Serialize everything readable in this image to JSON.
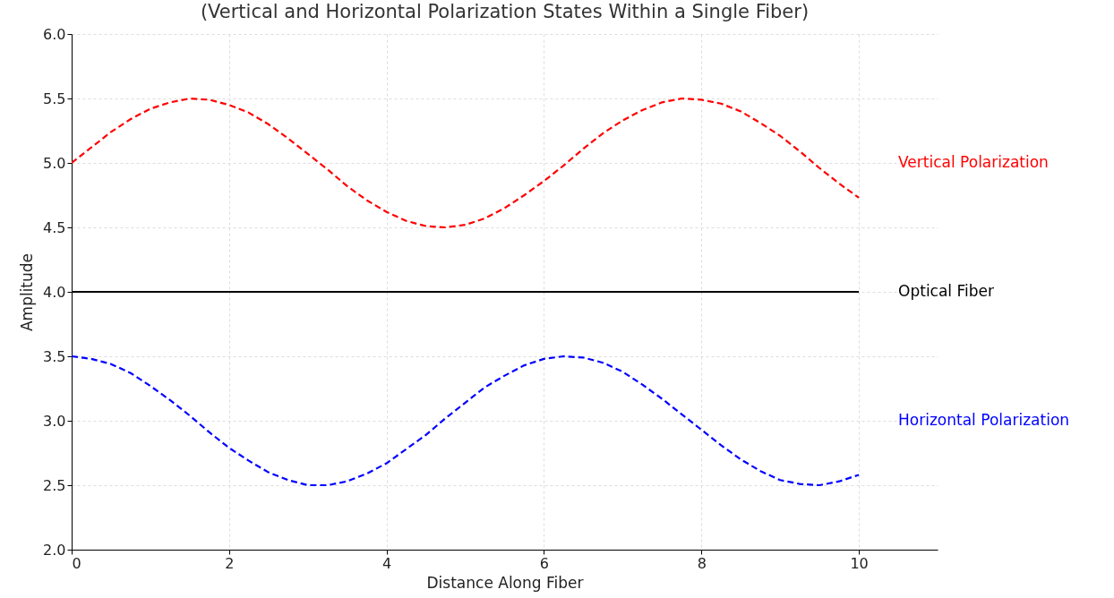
{
  "chart_data": {
    "type": "line",
    "title": "(Vertical and Horizontal Polarization States Within a Single Fiber)",
    "xlabel": "Distance Along Fiber",
    "ylabel": "Amplitude",
    "x": [
      0,
      0.25,
      0.5,
      0.75,
      1,
      1.25,
      1.5,
      1.75,
      2,
      2.25,
      2.5,
      2.75,
      3,
      3.25,
      3.5,
      3.75,
      4,
      4.25,
      4.5,
      4.75,
      5,
      5.25,
      5.5,
      5.75,
      6,
      6.25,
      6.5,
      6.75,
      7,
      7.25,
      7.5,
      7.75,
      8,
      8.25,
      8.5,
      8.75,
      9,
      9.25,
      9.5,
      9.75,
      10
    ],
    "series": [
      {
        "name": "Vertical Polarization",
        "color": "#ff0000",
        "line_style": "dashed",
        "values": [
          5.0,
          5.12,
          5.24,
          5.34,
          5.42,
          5.47,
          5.5,
          5.49,
          5.45,
          5.39,
          5.3,
          5.19,
          5.07,
          4.95,
          4.82,
          4.71,
          4.62,
          4.55,
          4.51,
          4.5,
          4.52,
          4.57,
          4.65,
          4.75,
          4.86,
          4.98,
          5.11,
          5.23,
          5.33,
          5.41,
          5.47,
          5.5,
          5.49,
          5.46,
          5.4,
          5.31,
          5.21,
          5.09,
          4.96,
          4.84,
          4.73
        ]
      },
      {
        "name": "Optical Fiber",
        "color": "#000000",
        "line_style": "solid",
        "x": [
          0,
          10
        ],
        "values": [
          4,
          4
        ]
      },
      {
        "name": "Horizontal Polarization",
        "color": "#0000ff",
        "line_style": "dashed",
        "values": [
          3.5,
          3.48,
          3.44,
          3.37,
          3.27,
          3.16,
          3.04,
          2.91,
          2.79,
          2.69,
          2.6,
          2.54,
          2.5,
          2.5,
          2.53,
          2.59,
          2.67,
          2.78,
          2.89,
          3.02,
          3.14,
          3.26,
          3.35,
          3.43,
          3.48,
          3.5,
          3.49,
          3.45,
          3.38,
          3.28,
          3.17,
          3.05,
          2.93,
          2.81,
          2.7,
          2.61,
          2.54,
          2.51,
          2.5,
          2.53,
          2.58
        ]
      }
    ],
    "xlim": [
      0,
      11
    ],
    "xticks": [
      0,
      2,
      4,
      6,
      8,
      10
    ],
    "ylim": [
      2,
      6
    ],
    "yticks": [
      {
        "value": 2,
        "label": "2.0"
      },
      {
        "value": 2.5,
        "label": "2.5"
      },
      {
        "value": 3,
        "label": "3.0"
      },
      {
        "value": 3.5,
        "label": "3.5"
      },
      {
        "value": 4,
        "label": "4.0"
      },
      {
        "value": 4.5,
        "label": "4.5"
      },
      {
        "value": 5,
        "label": "5.0"
      },
      {
        "value": 5.5,
        "label": "5.5"
      },
      {
        "value": 6,
        "label": "6.0"
      }
    ],
    "grid": true,
    "marker": "none"
  }
}
